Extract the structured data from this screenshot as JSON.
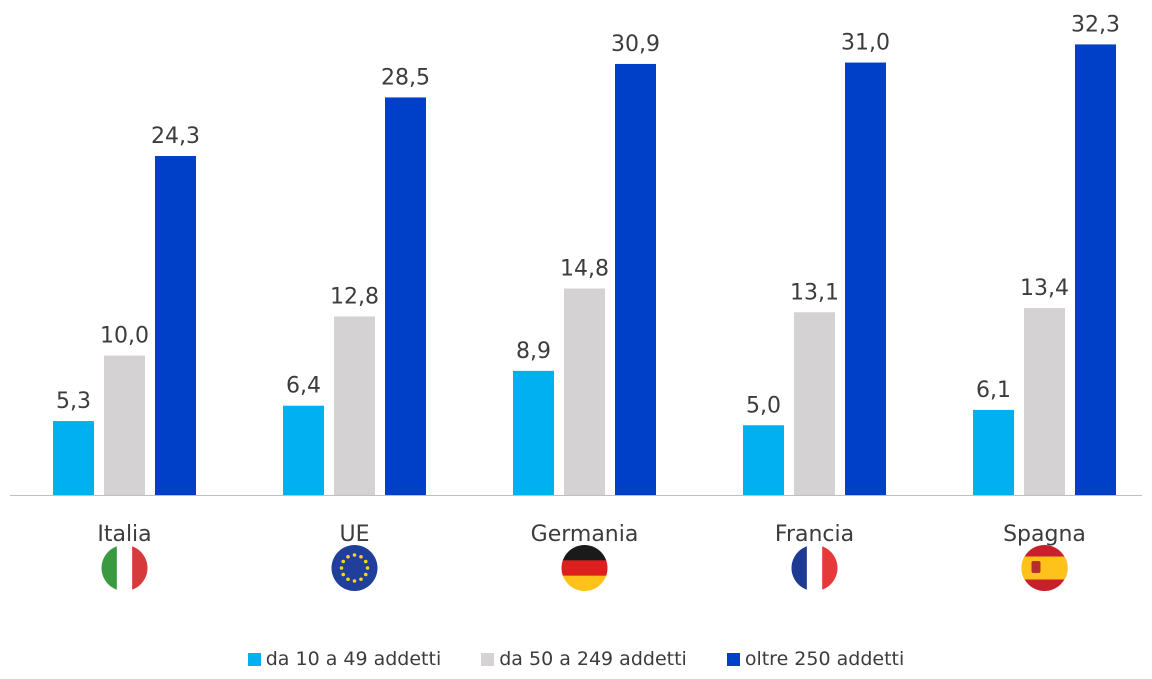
{
  "chart_data": {
    "type": "bar",
    "title": "",
    "xlabel": "",
    "ylabel": "",
    "ylim": [
      0,
      33
    ],
    "grid": false,
    "legend_position": "bottom",
    "categories": [
      "Italia",
      "UE",
      "Germania",
      "Francia",
      "Spagna"
    ],
    "category_flags": [
      "italy-flag-icon",
      "eu-flag-icon",
      "germany-flag-icon",
      "france-flag-icon",
      "spain-flag-icon"
    ],
    "series": [
      {
        "name": "da 10 a 49 addetti",
        "color": "#00b0f0",
        "values": [
          5.3,
          6.4,
          8.9,
          5.0,
          6.1
        ],
        "labels": [
          "5,3",
          "6,4",
          "8,9",
          "5,0",
          "6,1"
        ]
      },
      {
        "name": "da 50 a 249 addetti",
        "color": "#d4d2d2",
        "values": [
          10.0,
          12.8,
          14.8,
          13.1,
          13.4
        ],
        "labels": [
          "10,0",
          "12,8",
          "14,8",
          "13,1",
          "13,4"
        ]
      },
      {
        "name": "oltre 250 addetti",
        "color": "#0040c8",
        "values": [
          24.3,
          28.5,
          30.9,
          31.0,
          32.3
        ],
        "labels": [
          "24,3",
          "28,5",
          "30,9",
          "31,0",
          "32,3"
        ]
      }
    ]
  },
  "legend": {
    "item0": "da 10 a 49 addetti",
    "item1": "da 50 a 249 addetti",
    "item2": "oltre 250 addetti"
  }
}
